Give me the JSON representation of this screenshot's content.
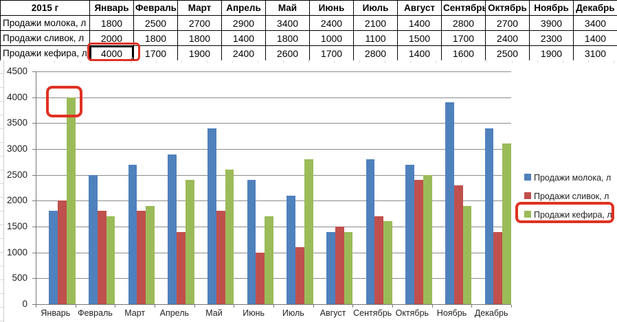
{
  "table": {
    "year_label": "2015 г",
    "months": [
      "Январь",
      "Февраль",
      "Март",
      "Апрель",
      "Май",
      "Июнь",
      "Июль",
      "Август",
      "Сентябрь",
      "Октябрь",
      "Ноябрь",
      "Декабрь"
    ],
    "rows": [
      {
        "label": "Продажи молока, л",
        "values": [
          1800,
          2500,
          2700,
          2900,
          3400,
          2400,
          2100,
          1400,
          2800,
          2700,
          3900,
          3400
        ]
      },
      {
        "label": "Продажи сливок, л",
        "values": [
          2000,
          1800,
          1800,
          1400,
          1800,
          1000,
          1100,
          1500,
          1700,
          2400,
          2300,
          1400
        ]
      },
      {
        "label": "Продажи кефира, л",
        "values": [
          4000,
          1700,
          1900,
          2400,
          2600,
          1700,
          2800,
          1400,
          1600,
          2500,
          1900,
          3100
        ]
      }
    ],
    "selected_cell": {
      "row_label": "Продажи кефира, л",
      "month": "Январь",
      "row": 2,
      "col": 0,
      "value": 4000
    }
  },
  "chart_data": {
    "type": "bar",
    "title": "",
    "xlabel": "",
    "ylabel": "",
    "categories": [
      "Январь",
      "Февраль",
      "Март",
      "Апрель",
      "Май",
      "Июнь",
      "Июль",
      "Август",
      "Сентябрь",
      "Октябрь",
      "Ноябрь",
      "Декабрь"
    ],
    "series": [
      {
        "name": "Продажи молока, л",
        "color": "#4F81BD",
        "values": [
          1800,
          2500,
          2700,
          2900,
          3400,
          2400,
          2100,
          1400,
          2800,
          2700,
          3900,
          3400
        ]
      },
      {
        "name": "Продажи сливок, л",
        "color": "#C0504D",
        "values": [
          2000,
          1800,
          1800,
          1400,
          1800,
          1000,
          1100,
          1500,
          1700,
          2400,
          2300,
          1400
        ]
      },
      {
        "name": "Продажи кефира, л",
        "color": "#9BBB59",
        "values": [
          4000,
          1700,
          1900,
          2400,
          2600,
          1700,
          2800,
          1400,
          1600,
          2500,
          1900,
          3100
        ]
      }
    ],
    "ylim": [
      0,
      4500
    ],
    "yticks": [
      0,
      500,
      1000,
      1500,
      2000,
      2500,
      3000,
      3500,
      4000,
      4500
    ],
    "grid": true,
    "legend_position": "right"
  },
  "annotations": {
    "highlight_color": "#e03122",
    "items": [
      {
        "name": "table-cell-highlight",
        "target": "Январь / Продажи кефира, л = 4000"
      },
      {
        "name": "bar-highlight",
        "target": "Январь green bar (4000)"
      },
      {
        "name": "legend-highlight",
        "target": "Продажи кефира, л"
      }
    ]
  }
}
